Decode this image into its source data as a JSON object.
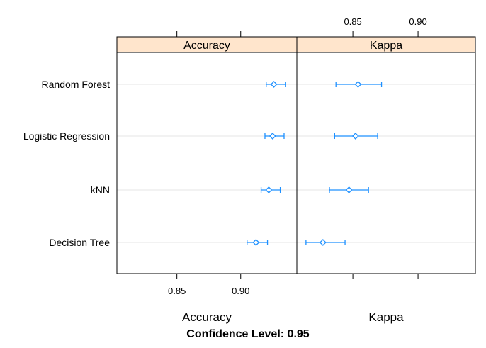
{
  "chart_data": {
    "type": "dotplot-ci",
    "title": "Confidence Level: 0.95",
    "categories": [
      "Random Forest",
      "Logistic Regression",
      "kNN",
      "Decision Tree"
    ],
    "colors": {
      "marker": "#1e90ff",
      "strip": "#ffe5cc",
      "grid": "#e6e6e6"
    },
    "grid": true,
    "panels": [
      {
        "name": "Accuracy",
        "xlabel": "Accuracy",
        "xlim": [
          0.803,
          0.944
        ],
        "ticks": [
          0.85,
          0.9
        ],
        "tick_labels": [
          "0.85",
          "0.90"
        ],
        "tick_side": "bottom",
        "points": [
          {
            "model": "Random Forest",
            "estimate": 0.926,
            "lower": 0.92,
            "upper": 0.935
          },
          {
            "model": "Logistic Regression",
            "estimate": 0.925,
            "lower": 0.919,
            "upper": 0.934
          },
          {
            "model": "kNN",
            "estimate": 0.922,
            "lower": 0.916,
            "upper": 0.931
          },
          {
            "model": "Decision Tree",
            "estimate": 0.912,
            "lower": 0.905,
            "upper": 0.921
          }
        ]
      },
      {
        "name": "Kappa",
        "xlabel": "Kappa",
        "xlim": [
          0.807,
          0.944
        ],
        "ticks": [
          0.85,
          0.9
        ],
        "tick_labels": [
          "0.85",
          "0.90"
        ],
        "tick_side": "top",
        "points": [
          {
            "model": "Random Forest",
            "estimate": 0.854,
            "lower": 0.837,
            "upper": 0.872
          },
          {
            "model": "Logistic Regression",
            "estimate": 0.852,
            "lower": 0.836,
            "upper": 0.869
          },
          {
            "model": "kNN",
            "estimate": 0.847,
            "lower": 0.832,
            "upper": 0.862
          },
          {
            "model": "Decision Tree",
            "estimate": 0.827,
            "lower": 0.814,
            "upper": 0.844
          }
        ]
      }
    ]
  }
}
